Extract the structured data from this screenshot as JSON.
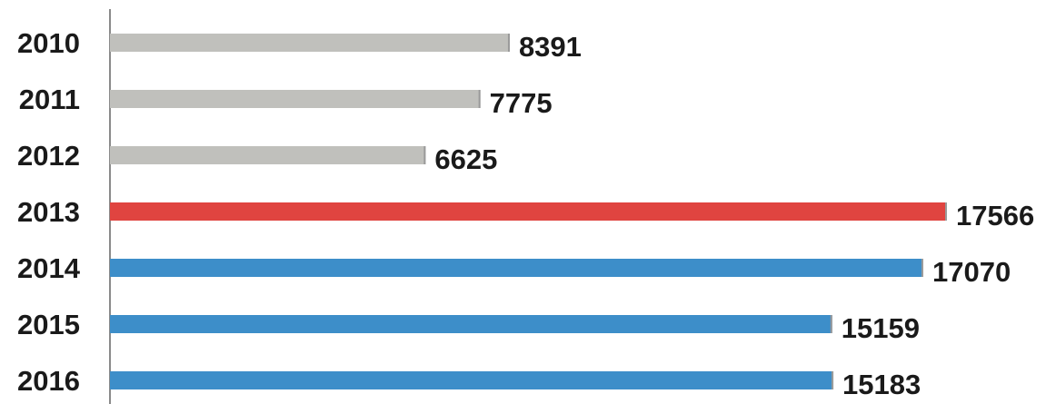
{
  "chart_data": {
    "type": "bar",
    "orientation": "horizontal",
    "categories": [
      "2010",
      "2011",
      "2012",
      "2013",
      "2014",
      "2015",
      "2016"
    ],
    "values": [
      8391,
      7775,
      6625,
      17566,
      17070,
      15159,
      15183
    ],
    "data_labels": [
      "8391",
      "7775",
      "6625",
      "17566",
      "17070",
      "15159",
      "15183"
    ],
    "bar_colors": [
      "#c0c0bc",
      "#c0c0bc",
      "#c0c0bc",
      "#e04440",
      "#3d8ec9",
      "#3d8ec9",
      "#3d8ec9"
    ],
    "title": "",
    "xlabel": "",
    "ylabel": "",
    "xlim": [
      0,
      17566
    ],
    "grid": false,
    "legend": "none"
  }
}
